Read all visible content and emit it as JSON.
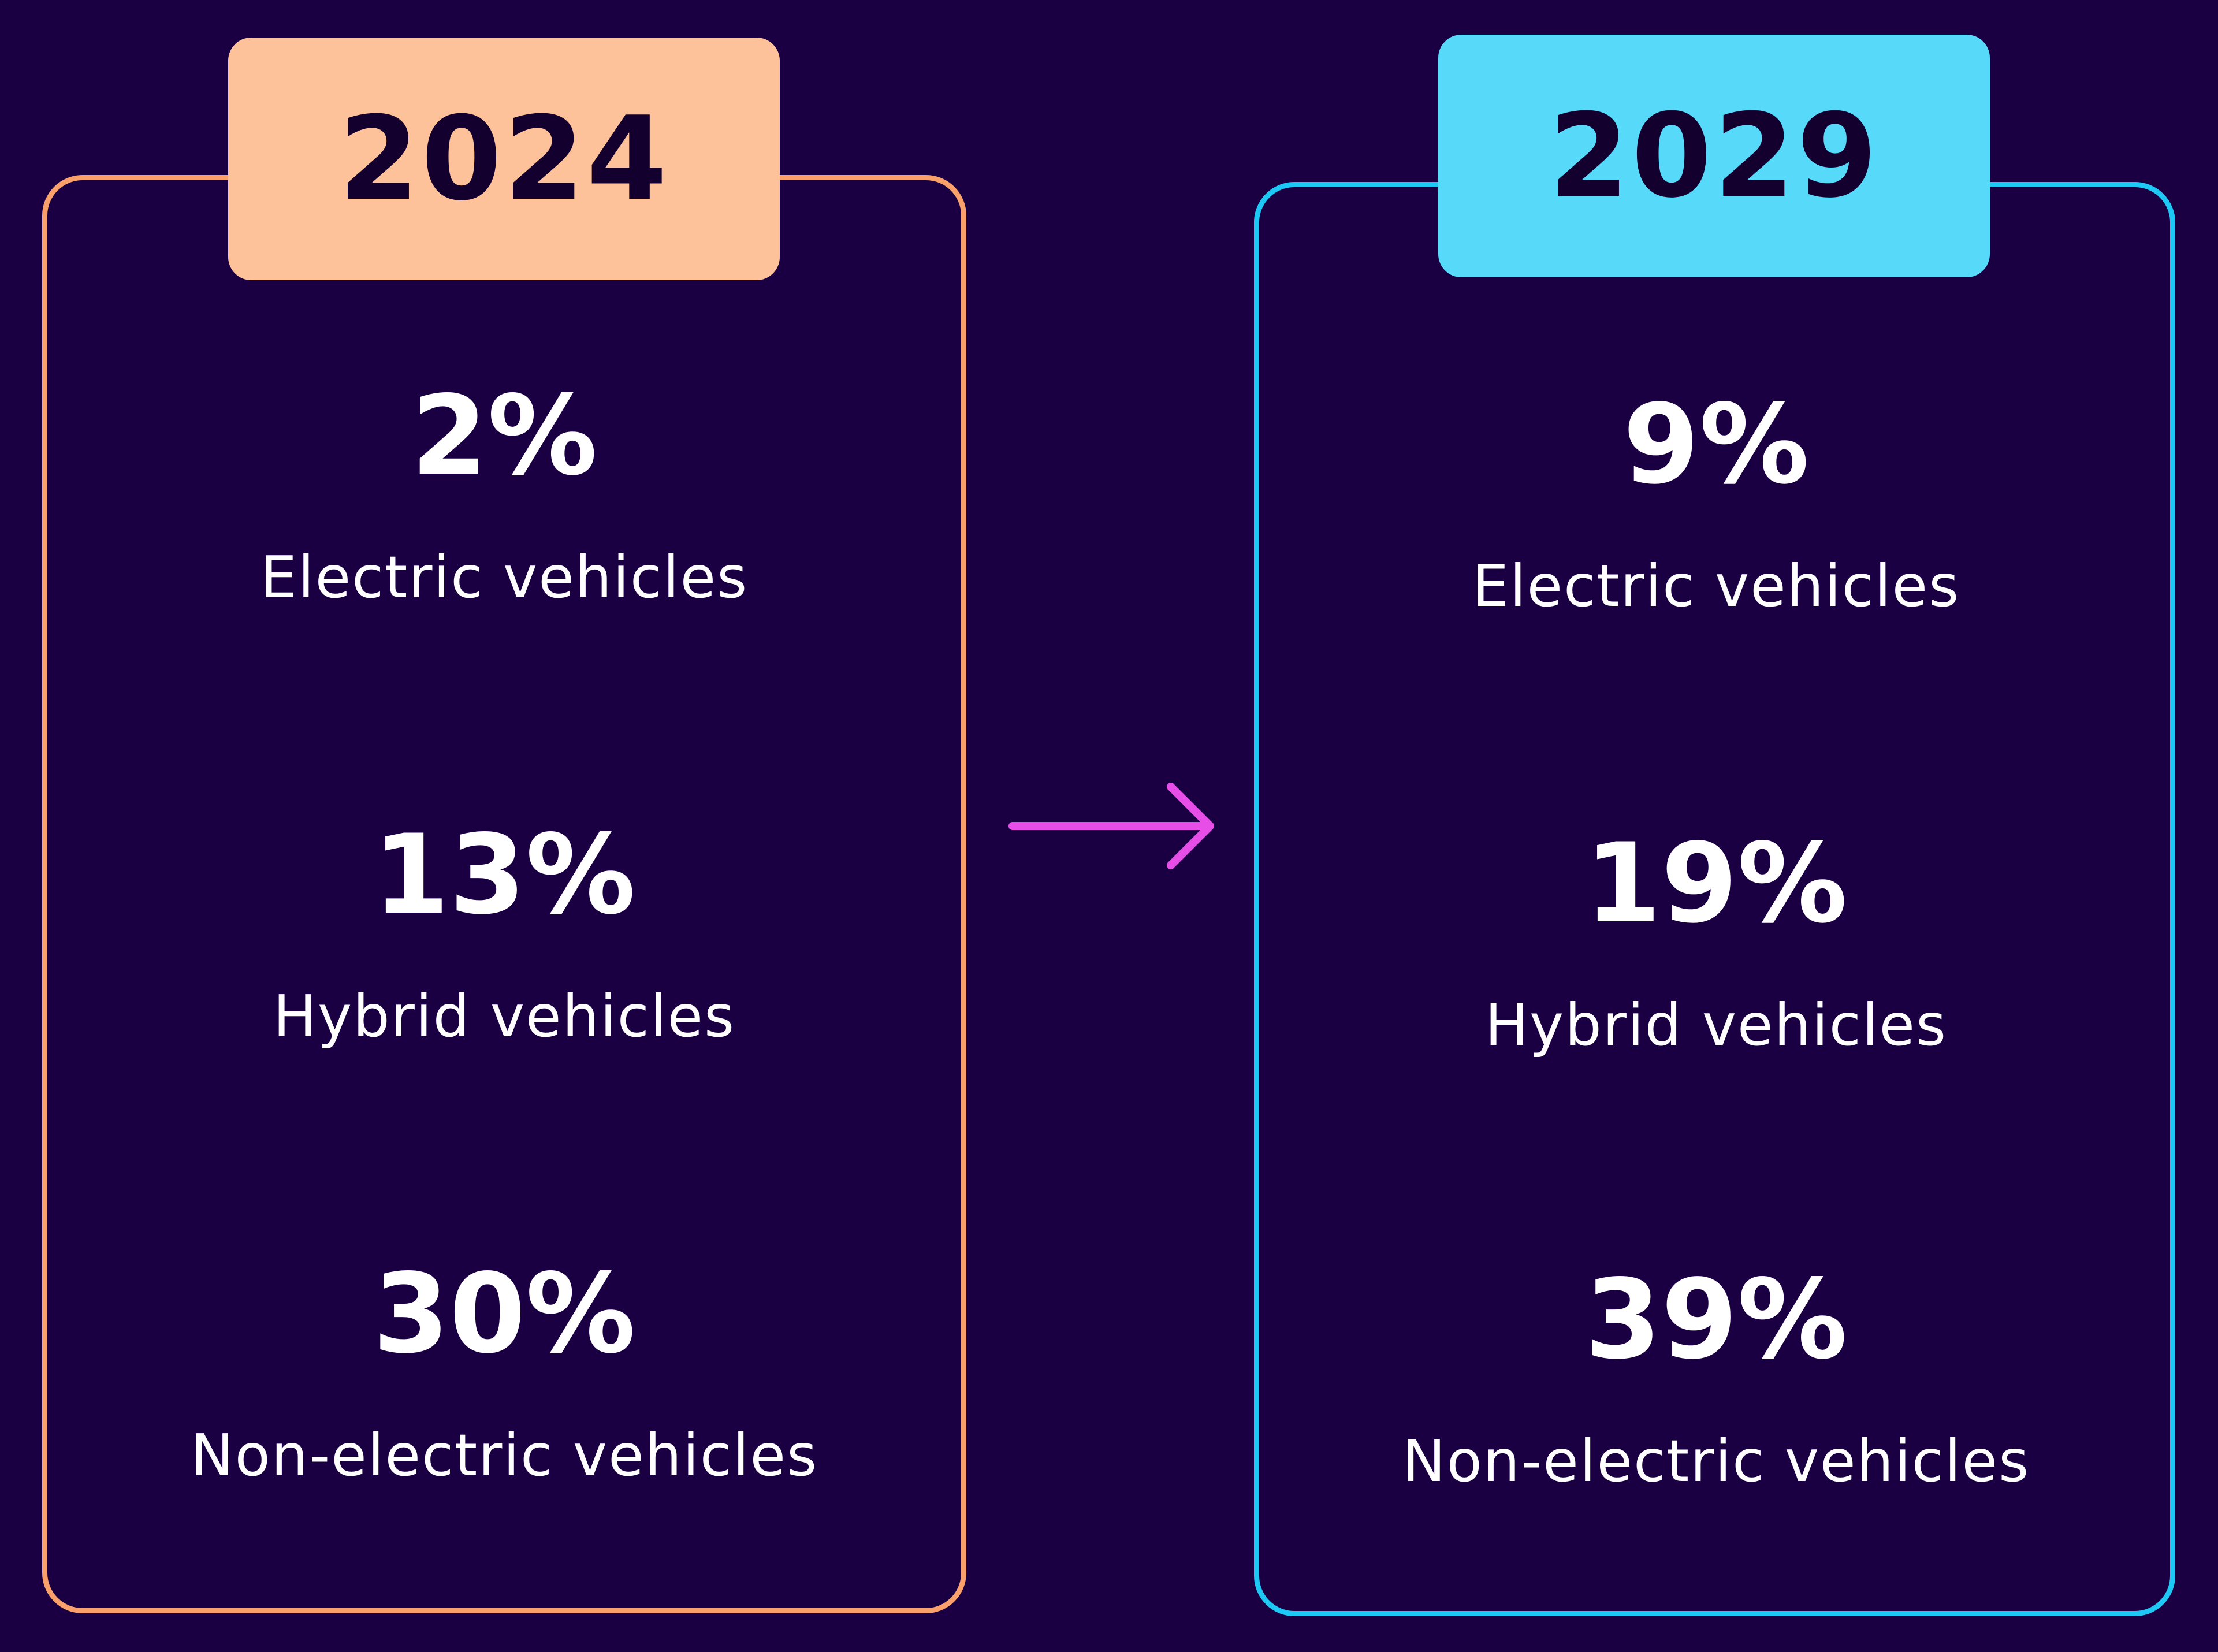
{
  "panels": [
    {
      "year": "2024",
      "border_color": "#f9a06b",
      "tab_color": "#fec29a",
      "stats": [
        {
          "value": "2%",
          "label": "Electric vehicles"
        },
        {
          "value": "13%",
          "label": "Hybrid vehicles"
        },
        {
          "value": "30%",
          "label": "Non-electric vehicles"
        }
      ]
    },
    {
      "year": "2029",
      "border_color": "#1ec8f4",
      "tab_color": "#57d9f9",
      "stats": [
        {
          "value": "9%",
          "label": "Electric vehicles"
        },
        {
          "value": "19%",
          "label": "Hybrid vehicles"
        },
        {
          "value": "39%",
          "label": "Non-electric vehicles"
        }
      ]
    }
  ],
  "arrow": {
    "icon": "arrow-right-icon",
    "color": "#e74ee8"
  },
  "background_color": "#1a0042"
}
